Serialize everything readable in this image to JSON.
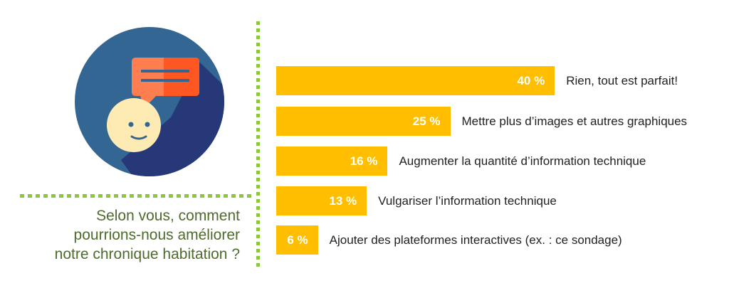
{
  "question": {
    "lines": [
      "Selon vous, comment",
      "pourrions-nous améliorer",
      "notre chronique habitation ?"
    ]
  },
  "icon": "speech-bubble-smiley-icon",
  "colors": {
    "bar": "#ffbf00",
    "accent_dots": "#8cc63f",
    "question_text": "#4e6b2c",
    "circle": "#336693",
    "shadow": "#263878",
    "bubble": "#ff7e4f",
    "face": "#fdebb3"
  },
  "chart_data": {
    "type": "bar",
    "orientation": "horizontal",
    "categories": [
      "Rien, tout est parfait!",
      "Mettre plus d’images et autres graphiques",
      "Augmenter la quantité d’information technique",
      "Vulgariser l’information technique",
      "Ajouter des plateformes interactives (ex. : ce sondage)"
    ],
    "values": [
      40,
      25,
      16,
      13,
      6
    ],
    "value_labels": [
      "40 %",
      "25 %",
      "16 %",
      "13 %",
      "6 %"
    ],
    "unit": "%",
    "grid": false
  }
}
